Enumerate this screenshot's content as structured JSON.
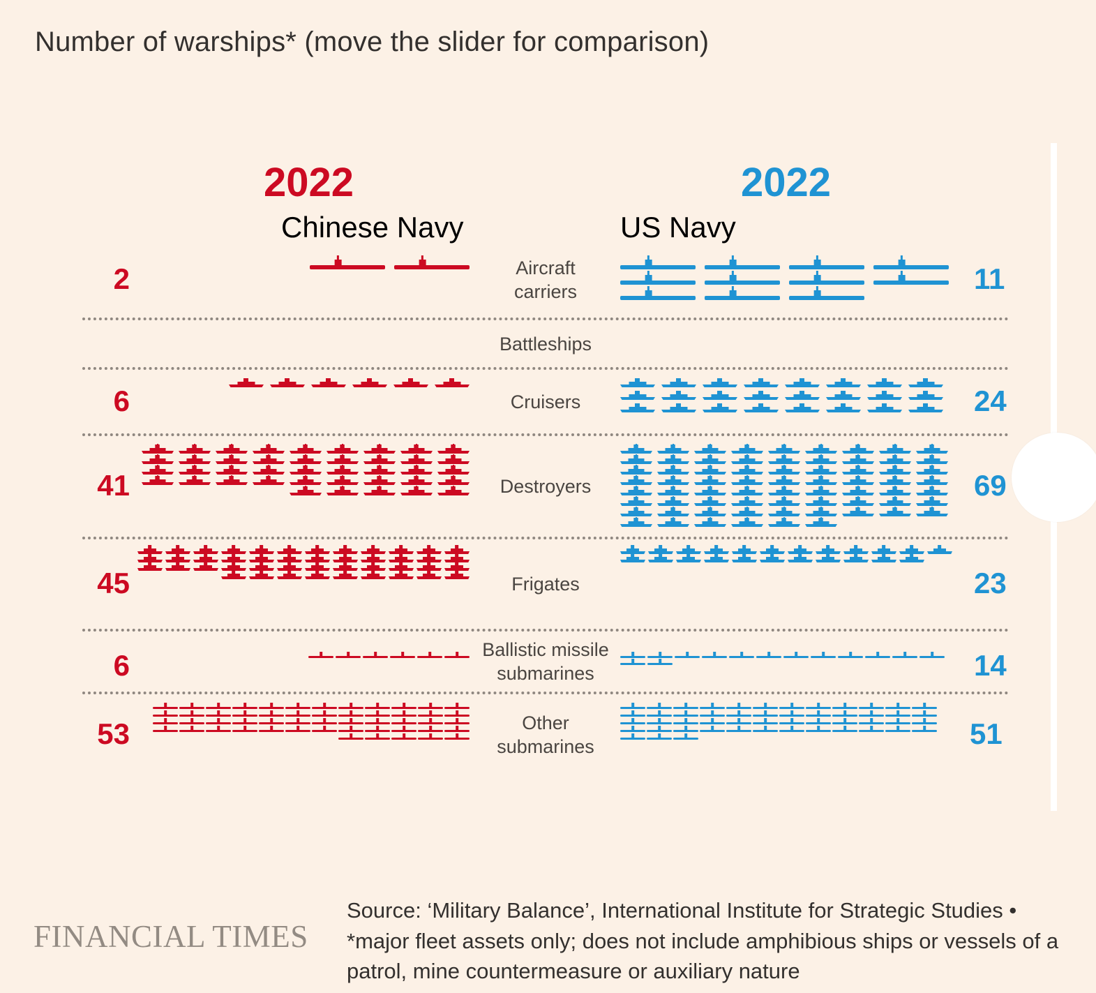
{
  "title": "Number of warships* (move the slider for comparison)",
  "colors": {
    "china": "#cc0a22",
    "us": "#1f93d3",
    "background": "#fcf1e6"
  },
  "left_panel": {
    "year": "2022",
    "navy": "Chinese Navy"
  },
  "right_panel": {
    "year": "2022",
    "navy": "US Navy"
  },
  "chart_data": {
    "type": "pictogram",
    "title": "Number of warships* (move the slider for comparison)",
    "categories": [
      "Aircraft carriers",
      "Battleships",
      "Cruisers",
      "Destroyers",
      "Frigates",
      "Ballistic missile submarines",
      "Other submarines"
    ],
    "series": [
      {
        "name": "Chinese Navy",
        "year": "2022",
        "values": [
          2,
          0,
          6,
          41,
          45,
          6,
          53
        ]
      },
      {
        "name": "US Navy",
        "year": "2022",
        "values": [
          11,
          0,
          24,
          69,
          23,
          14,
          51
        ]
      }
    ]
  },
  "rows": [
    {
      "label": "Aircraft\ncarriers",
      "cn": "2",
      "us": "11"
    },
    {
      "label": "Battleships",
      "cn": "",
      "us": ""
    },
    {
      "label": "Cruisers",
      "cn": "6",
      "us": "24"
    },
    {
      "label": "Destroyers",
      "cn": "41",
      "us": "69"
    },
    {
      "label": "Frigates",
      "cn": "45",
      "us": "23"
    },
    {
      "label": "Ballistic missile\nsubmarines",
      "cn": "6",
      "us": "14"
    },
    {
      "label": "Other\nsubmarines",
      "cn": "53",
      "us": "51"
    }
  ],
  "footer": {
    "logo": "FINANCIAL TIMES",
    "source": "Source: ‘Military Balance’, International Institute for Strategic Studies • *major fleet assets only; does not include amphibious ships or vessels of a patrol, mine countermeasure or auxiliary nature"
  }
}
